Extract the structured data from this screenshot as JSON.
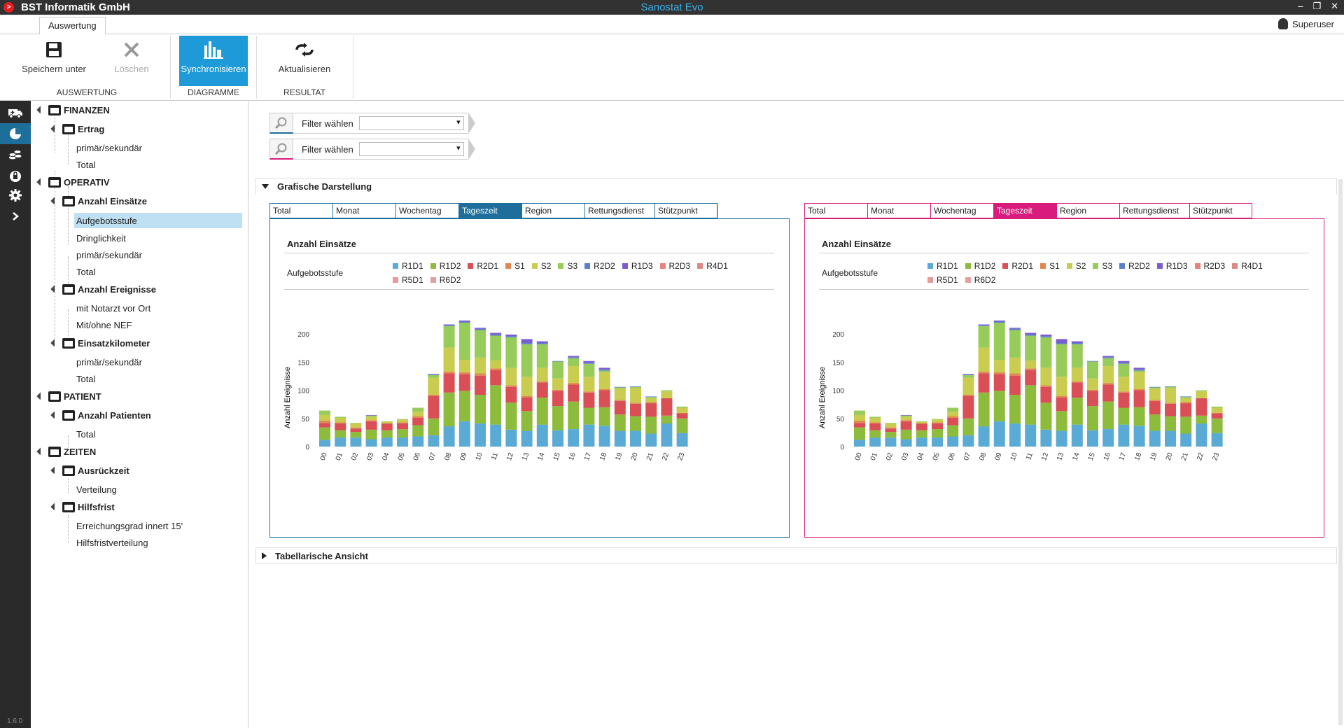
{
  "titlebar": {
    "company": "BST Informatik GmbH",
    "app_title": "Sanostat Evo",
    "logo_glyph": ">"
  },
  "tabrow": {
    "tab_label": "Auswertung",
    "user": "Superuser"
  },
  "ribbon": {
    "save_label": "Speichern unter",
    "delete_label": "Löschen",
    "sync_label": "Synchronisieren",
    "refresh_label": "Aktualisieren",
    "group_auswertung": "AUSWERTUNG",
    "group_diagramme": "DIAGRAMME",
    "group_resultat": "RESULTAT"
  },
  "navstrip": {
    "icons": [
      "ambulance-icon",
      "pie-chart-icon",
      "coins-icon",
      "lock-icon",
      "gear-icon",
      "chevron-right-icon"
    ],
    "version": "1.6.0"
  },
  "tree": {
    "finanzen": "FINANZEN",
    "ertrag": "Ertrag",
    "ertrag_primaer": "primär/sekundär",
    "ertrag_total": "Total",
    "operativ": "OPERATIV",
    "anzahl_einsaetze": "Anzahl Einsätze",
    "aufgebotsstufe": "Aufgebotsstufe",
    "dringlichkeit": "Dringlichkeit",
    "einsaetze_primaer": "primär/sekundär",
    "einsaetze_total": "Total",
    "anzahl_ereignisse": "Anzahl Ereignisse",
    "mit_notarzt": "mit Notarzt vor Ort",
    "mit_ohne_nef": "Mit/ohne NEF",
    "einsatzkilometer": "Einsatzkilometer",
    "km_primaer": "primär/sekundär",
    "km_total": "Total",
    "patient": "PATIENT",
    "anzahl_patienten": "Anzahl Patienten",
    "patienten_total": "Total",
    "zeiten": "ZEITEN",
    "ausrueckzeit": "Ausrückzeit",
    "verteilung": "Verteilung",
    "hilfsfrist": "Hilfsfrist",
    "erreichungsgrad": "Erreichungsgrad innert 15'",
    "hilfsfristverteilung": "Hilfsfristverteilung"
  },
  "filters": {
    "filter1_label": "Filter wählen",
    "filter1_value": "",
    "filter2_label": "Filter wählen",
    "filter2_value": ""
  },
  "sections": {
    "grafisch": "Grafische Darstellung",
    "tabellarisch": "Tabellarische Ansicht"
  },
  "panel_tabs": [
    "Total",
    "Monat",
    "Wochentag",
    "Tageszeit",
    "Region",
    "Rettungsdienst",
    "Stützpunkt"
  ],
  "active_tab": "Tageszeit",
  "panels": {
    "left": {
      "title": "Anzahl Einsätze",
      "group_label": "Aufgebotsstufe",
      "accent": "#1e6e9c"
    },
    "right": {
      "title": "Anzahl Einsätze",
      "group_label": "Aufgebotsstufe",
      "accent": "#d81b7d"
    }
  },
  "chart_data": {
    "type": "bar",
    "stacked": true,
    "title": "Anzahl Einsätze",
    "ylabel": "Anzahl Ereignisse",
    "ylim": [
      0,
      230
    ],
    "yticks": [
      0,
      50,
      100,
      150,
      200
    ],
    "categories": [
      "00",
      "01",
      "02",
      "03",
      "04",
      "05",
      "06",
      "07",
      "08",
      "09",
      "10",
      "11",
      "12",
      "13",
      "14",
      "15",
      "16",
      "17",
      "18",
      "19",
      "20",
      "21",
      "22",
      "23"
    ],
    "series": [
      {
        "name": "R1D1",
        "color": "#5aaad6",
        "values": [
          12,
          16,
          16,
          13,
          16,
          16,
          18,
          20,
          36,
          45,
          41,
          39,
          30,
          28,
          39,
          29,
          31,
          39,
          37,
          28,
          28,
          23,
          41,
          24
        ]
      },
      {
        "name": "R1D2",
        "color": "#8dbb3c",
        "values": [
          22,
          13,
          10,
          17,
          13,
          15,
          20,
          30,
          60,
          54,
          51,
          70,
          48,
          35,
          48,
          43,
          49,
          30,
          33,
          29,
          26,
          30,
          14,
          26
        ]
      },
      {
        "name": "R2D1",
        "color": "#d94f55",
        "values": [
          8,
          12,
          6,
          15,
          12,
          10,
          13,
          40,
          34,
          30,
          34,
          27,
          28,
          24,
          27,
          27,
          30,
          27,
          30,
          24,
          22,
          24,
          31,
          9
        ]
      },
      {
        "name": "S1",
        "color": "#e0894f",
        "values": [
          4,
          2,
          2,
          2,
          0,
          2,
          3,
          2,
          3,
          3,
          4,
          3,
          3,
          3,
          2,
          2,
          3,
          2,
          2,
          2,
          2,
          2,
          0,
          1
        ]
      },
      {
        "name": "S2",
        "color": "#c9cc4e",
        "values": [
          10,
          8,
          7,
          6,
          3,
          5,
          8,
          30,
          43,
          22,
          28,
          14,
          31,
          34,
          24,
          20,
          30,
          26,
          30,
          20,
          26,
          7,
          12,
          9
        ]
      },
      {
        "name": "S3",
        "color": "#98cc5a",
        "values": [
          8,
          2,
          1,
          2,
          1,
          1,
          7,
          5,
          38,
          66,
          49,
          44,
          54,
          58,
          42,
          30,
          14,
          23,
          3,
          2,
          2,
          2,
          2,
          2
        ]
      },
      {
        "name": "R2D2",
        "color": "#5a7fcf",
        "values": [
          0,
          0,
          0,
          0,
          0,
          0,
          0,
          1,
          2,
          2,
          2,
          2,
          2,
          2,
          2,
          1,
          2,
          2,
          2,
          1,
          1,
          1,
          0,
          0
        ]
      },
      {
        "name": "R1D3",
        "color": "#7c5cd0",
        "values": [
          0,
          0,
          0,
          1,
          0,
          0,
          0,
          1,
          1,
          2,
          2,
          3,
          3,
          7,
          3,
          0,
          2,
          3,
          3,
          0,
          0,
          0,
          0,
          0
        ]
      },
      {
        "name": "R2D3",
        "color": "#e8817f",
        "values": [
          0,
          0,
          0,
          0,
          0,
          0,
          0,
          0,
          0,
          0,
          0,
          0,
          0,
          0,
          0,
          0,
          0,
          0,
          0,
          0,
          0,
          0,
          0,
          0
        ]
      },
      {
        "name": "R4D1",
        "color": "#dc8a84",
        "values": [
          0,
          0,
          0,
          0,
          0,
          0,
          0,
          0,
          0,
          0,
          0,
          0,
          0,
          0,
          0,
          0,
          0,
          0,
          0,
          0,
          0,
          0,
          0,
          0
        ]
      },
      {
        "name": "R5D1",
        "color": "#e69a9a",
        "values": [
          0,
          0,
          0,
          0,
          0,
          0,
          0,
          0,
          0,
          0,
          0,
          0,
          0,
          0,
          0,
          0,
          0,
          0,
          0,
          0,
          0,
          0,
          0,
          0
        ]
      },
      {
        "name": "R6D2",
        "color": "#e3a0a0",
        "values": [
          0,
          0,
          0,
          0,
          0,
          0,
          0,
          0,
          0,
          0,
          0,
          0,
          0,
          0,
          0,
          0,
          0,
          0,
          0,
          0,
          0,
          0,
          0,
          0
        ]
      }
    ]
  }
}
